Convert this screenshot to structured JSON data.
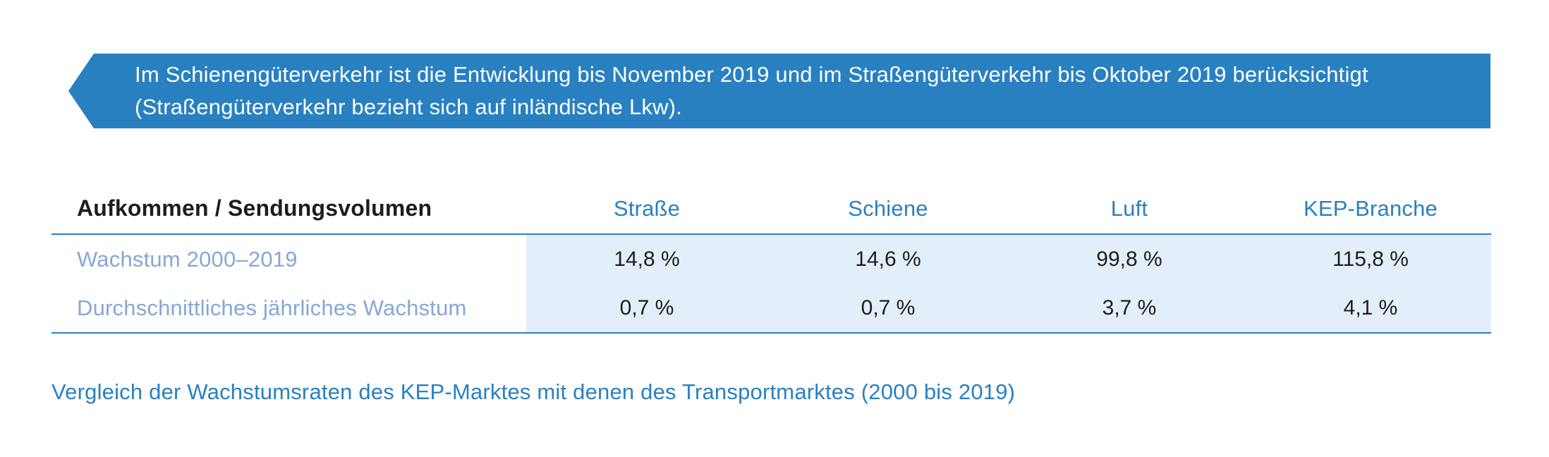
{
  "banner": {
    "text": "Im Schienengüterverkehr ist die Entwicklung bis November 2019 und im Straßengüterverkehr bis Oktober 2019 berücksichtigt (Straßengüterverkehr bezieht sich auf inländische Lkw)."
  },
  "table": {
    "header": {
      "label": "Aufkommen / Sendungsvolumen",
      "columns": [
        "Straße",
        "Schiene",
        "Luft",
        "KEP-Branche"
      ]
    },
    "rows": [
      {
        "label": "Wachstum 2000–2019",
        "values": [
          "14,8 %",
          "14,6 %",
          "99,8 %",
          "115,8 %"
        ]
      },
      {
        "label": "Durchschnittliches jährliches Wachstum",
        "values": [
          "0,7 %",
          "0,7 %",
          "3,7 %",
          "4,1 %"
        ]
      }
    ]
  },
  "caption": "Vergleich der Wachstumsraten des KEP-Marktes mit denen des Transportmarktes (2000 bis 2019)",
  "chart_data": {
    "type": "table",
    "title": "Vergleich der Wachstumsraten des KEP-Marktes mit denen des Transportmarktes (2000 bis 2019)",
    "columns": [
      "Aufkommen / Sendungsvolumen",
      "Straße",
      "Schiene",
      "Luft",
      "KEP-Branche"
    ],
    "rows": [
      [
        "Wachstum 2000–2019",
        "14,8 %",
        "14,6 %",
        "99,8 %",
        "115,8 %"
      ],
      [
        "Durchschnittliches jährliches Wachstum",
        "0,7 %",
        "0,7 %",
        "3,7 %",
        "4,1 %"
      ]
    ],
    "note": "Im Schienengüterverkehr ist die Entwicklung bis November 2019 und im Straßengüterverkehr bis Oktober 2019 berücksichtigt (Straßengüterverkehr bezieht sich auf inländische Lkw)."
  },
  "colors": {
    "accent": "#2980c1",
    "row_label": "#86a7d7",
    "cell_bg": "#e4eefa",
    "banner_bg": "#2980c1",
    "banner_text": "#ffffff",
    "value_text": "#1d1d1b"
  }
}
